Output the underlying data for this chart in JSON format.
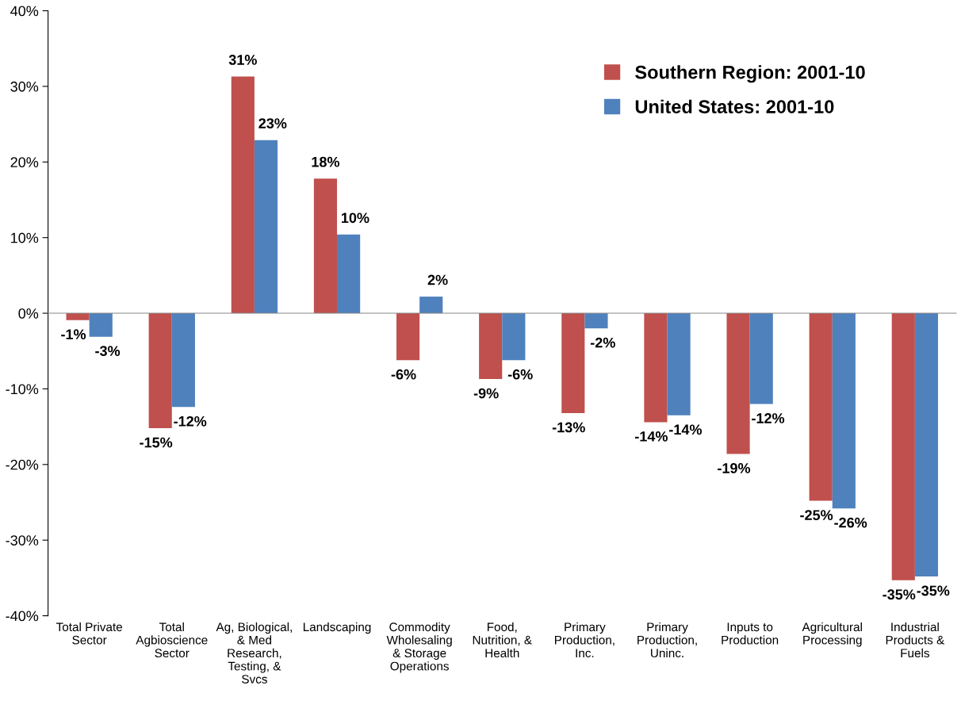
{
  "chart_data": {
    "type": "bar",
    "categories": [
      "Total Private\nSector",
      "Total\nAgbioscience\nSector",
      "Ag, Biological,\n& Med\nResearch,\nTesting, &\nSvcs",
      "Landscaping",
      "Commodity\nWholesaling\n& Storage\nOperations",
      "Food,\nNutrition, &\nHealth",
      "Primary\nProduction,\nInc.",
      "Primary\nProduction,\nUninc.",
      "Inputs to\nProduction",
      "Agricultural\nProcessing",
      "Industrial\nProducts &\nFuels"
    ],
    "series": [
      {
        "name": "Southern Region: 2001-10",
        "color": "#c0504d",
        "values": [
          -0.9,
          -15.2,
          31.3,
          17.8,
          -6.2,
          -8.7,
          -13.2,
          -14.4,
          -18.6,
          -24.8,
          -35.3
        ],
        "value_labels": [
          "-1%",
          "-15%",
          "31%",
          "18%",
          "-6%",
          "-9%",
          "-13%",
          "-14%",
          "-19%",
          "-25%",
          "-35%"
        ]
      },
      {
        "name": "United States: 2001-10",
        "color": "#4f81bd",
        "values": [
          -3.1,
          -12.4,
          22.9,
          10.4,
          2.2,
          -6.2,
          -2.0,
          -13.5,
          -12.0,
          -25.8,
          -34.8
        ],
        "value_labels": [
          "-3%",
          "-12%",
          "23%",
          "10%",
          "2%",
          "-6%",
          "-2%",
          "-14%",
          "-12%",
          "-26%",
          "-35%"
        ]
      }
    ],
    "ylim": [
      -40,
      40
    ],
    "yticks": [
      {
        "value": -40,
        "label": "-40%"
      },
      {
        "value": -30,
        "label": "-30%"
      },
      {
        "value": -20,
        "label": "-20%"
      },
      {
        "value": -10,
        "label": "-10%"
      },
      {
        "value": 0,
        "label": "0%"
      },
      {
        "value": 10,
        "label": "10%"
      },
      {
        "value": 20,
        "label": "20%"
      },
      {
        "value": 30,
        "label": "30%"
      },
      {
        "value": 40,
        "label": "40%"
      }
    ],
    "legend": "top right"
  }
}
